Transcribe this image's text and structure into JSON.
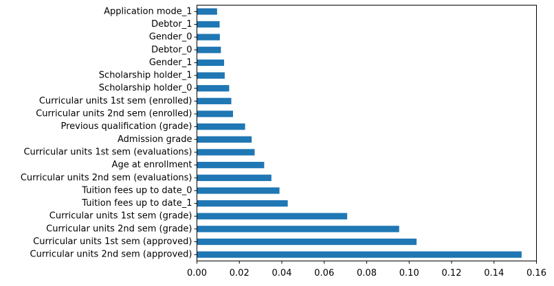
{
  "chart_data": {
    "type": "bar",
    "orientation": "horizontal",
    "title": "",
    "xlabel": "",
    "ylabel": "",
    "xlim": [
      0,
      0.16
    ],
    "x_ticks": [
      0.0,
      0.02,
      0.04,
      0.06,
      0.08,
      0.1,
      0.12,
      0.14,
      0.16
    ],
    "x_tick_labels": [
      "0.00",
      "0.02",
      "0.04",
      "0.06",
      "0.08",
      "0.10",
      "0.12",
      "0.14",
      "0.16"
    ],
    "grid": false,
    "legend": "none",
    "bar_color": "#1f77b4",
    "categories": [
      "Curricular units 2nd sem (approved)",
      "Curricular units 1st sem (approved)",
      "Curricular units 2nd sem (grade)",
      "Curricular units 1st sem (grade)",
      "Tuition fees up to date_1",
      "Tuition fees up to date_0",
      "Curricular units 2nd sem (evaluations)",
      "Age at enrollment",
      "Curricular units 1st sem (evaluations)",
      "Admission grade",
      "Previous qualification (grade)",
      "Curricular units 2nd sem (enrolled)",
      "Curricular units 1st sem (enrolled)",
      "Scholarship holder_0",
      "Scholarship holder_1",
      "Gender_1",
      "Debtor_0",
      "Gender_0",
      "Debtor_1",
      "Application mode_1"
    ],
    "values": [
      0.153,
      0.1035,
      0.0953,
      0.0708,
      0.0428,
      0.0389,
      0.0351,
      0.0317,
      0.0272,
      0.0258,
      0.0227,
      0.017,
      0.0162,
      0.0152,
      0.0131,
      0.0128,
      0.0113,
      0.0108,
      0.0107,
      0.0095
    ]
  }
}
